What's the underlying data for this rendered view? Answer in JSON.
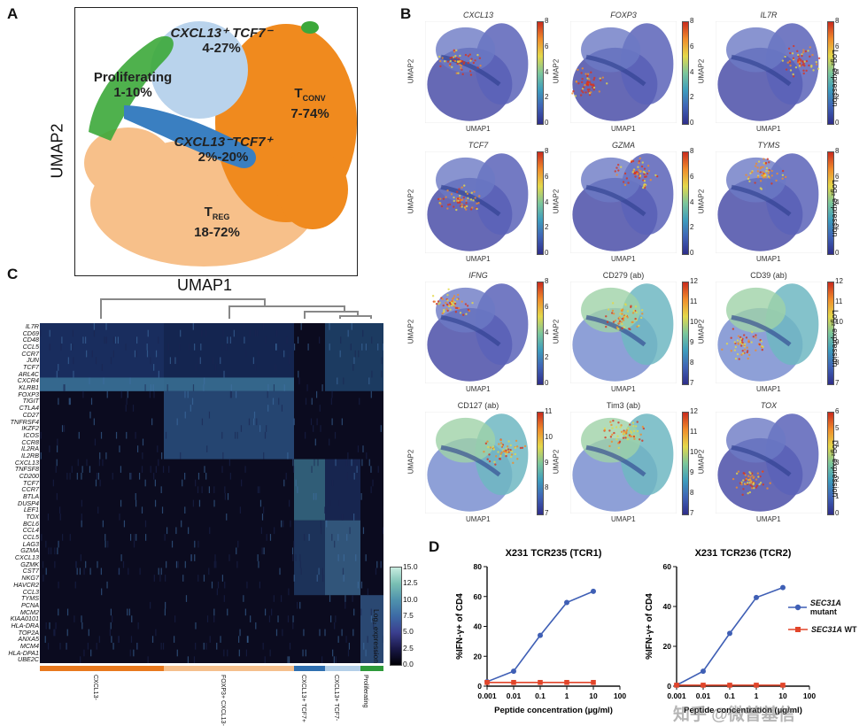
{
  "panels": {
    "a": "A",
    "b": "B",
    "c": "C",
    "d": "D"
  },
  "umap_main": {
    "xlabel": "UMAP1",
    "ylabel": "UMAP2",
    "clusters": [
      {
        "name": "CXCL13⁺ TCF7⁻",
        "pct": "4-27%",
        "color": "#b9d3ec"
      },
      {
        "name": "Proliferating",
        "pct": "1-10%",
        "color": "#3ca83a"
      },
      {
        "name": "T",
        "sub": "CONV",
        "pct": "7-74%",
        "color": "#f08a1e"
      },
      {
        "name": "CXCL13⁻TCF7⁺",
        "pct": "2%-20%",
        "color": "#3a7fc1"
      },
      {
        "name": "T",
        "sub": "REG",
        "pct": "18-72%",
        "color": "#f7c08a"
      }
    ]
  },
  "feature_plots": [
    {
      "title": "CXCL13",
      "italic": true,
      "cb_ticks": [
        "8",
        "6",
        "4",
        "2",
        "0"
      ],
      "cb_label": ""
    },
    {
      "title": "FOXP3",
      "italic": true,
      "cb_ticks": [
        "8",
        "6",
        "4",
        "2",
        "0"
      ],
      "cb_label": ""
    },
    {
      "title": "IL7R",
      "italic": true,
      "cb_ticks": [
        "8",
        "6",
        "4",
        "2",
        "0"
      ],
      "cb_label": "Log₂ expression"
    },
    {
      "title": "TCF7",
      "italic": true,
      "cb_ticks": [
        "8",
        "6",
        "4",
        "2",
        "0"
      ],
      "cb_label": ""
    },
    {
      "title": "GZMA",
      "italic": true,
      "cb_ticks": [
        "8",
        "6",
        "4",
        "2",
        "0"
      ],
      "cb_label": ""
    },
    {
      "title": "TYMS",
      "italic": true,
      "cb_ticks": [
        "8",
        "6",
        "4",
        "2",
        "0"
      ],
      "cb_label": "Log₂ expression"
    },
    {
      "title": "IFNG",
      "italic": true,
      "cb_ticks": [
        "8",
        "6",
        "4",
        "2",
        "0"
      ],
      "cb_label": ""
    },
    {
      "title": "CD279 (ab)",
      "italic": false,
      "cb_ticks": [
        "12",
        "11",
        "10",
        "9",
        "8",
        "7"
      ],
      "cb_label": ""
    },
    {
      "title": "CD39 (ab)",
      "italic": false,
      "cb_ticks": [
        "12",
        "11",
        "10",
        "9",
        "8",
        "7"
      ],
      "cb_label": "Log₂ expression"
    },
    {
      "title": "CD127 (ab)",
      "italic": false,
      "cb_ticks": [
        "11",
        "10",
        "9",
        "8",
        "7"
      ],
      "cb_label": ""
    },
    {
      "title": "Tim3 (ab)",
      "italic": false,
      "cb_ticks": [
        "12",
        "11",
        "10",
        "9",
        "8",
        "7"
      ],
      "cb_label": ""
    },
    {
      "title": "TOX",
      "italic": true,
      "cb_ticks": [
        "6",
        "5",
        "4",
        "3",
        "2",
        "1",
        "0"
      ],
      "cb_label": "Log₂ expression"
    }
  ],
  "feature_axes": {
    "x": "UMAP1",
    "y": "UMAP2"
  },
  "heatmap": {
    "genes": [
      "IL7R",
      "CD69",
      "CD48",
      "CCL5",
      "CCR7",
      "JUN",
      "TCF7",
      "ARL4C",
      "CXCR4",
      "KLRB1",
      "FOXP3",
      "TIGIT",
      "CTLA4",
      "CD27",
      "TNFRSF4",
      "IKZF2",
      "ICOS",
      "CCR8",
      "IL2RA",
      "IL2RB",
      "CXCL13",
      "TNFSF8",
      "CD200",
      "TCF7",
      "CCR7",
      "BTLA",
      "DUSP4",
      "LEF1",
      "TOX",
      "BCL6",
      "CCL4",
      "CCL5",
      "LAG3",
      "GZMA",
      "CXCL13",
      "GZMK",
      "CST7",
      "NKG7",
      "HAVCR2",
      "CCL3",
      "TYMS",
      "PCNA",
      "MCM2",
      "KIAA0101",
      "HLA-DRA",
      "TOP2A",
      "ANXA5",
      "MCM4",
      "HLA-DPA1",
      "UBE2C"
    ],
    "groups": [
      {
        "name": "CXCL13-",
        "color": "#e8791e"
      },
      {
        "name": "FOXP3+ CXCL13-",
        "color": "#f5bf8c"
      },
      {
        "name": "CXCL13+ TCF7+",
        "color": "#2f6fb0"
      },
      {
        "name": "CXCL13+ TCF7-",
        "color": "#b4cfe8"
      },
      {
        "name": "Proliferating",
        "color": "#2e9a3a"
      }
    ],
    "colorbar": {
      "label": "Log₂ expression",
      "ticks": [
        "15.0",
        "12.5",
        "10.0",
        "7.5",
        "5.0",
        "2.5",
        "0.0"
      ]
    }
  },
  "chart_data": [
    {
      "type": "line",
      "title": "X231 TCR235 (TCR1)",
      "xlabel": "Peptide concentration (µg/ml)",
      "ylabel": "%IFN-γ+ of CD4",
      "x": [
        0.001,
        0.01,
        0.1,
        1,
        10
      ],
      "xticks": [
        "0.001",
        "0.01",
        "0.1",
        "1",
        "10",
        "100"
      ],
      "ylim": [
        0,
        80
      ],
      "yticks": [
        "0",
        "20",
        "40",
        "60",
        "80"
      ],
      "log_x": true,
      "series": [
        {
          "name": "SEC31A mutant",
          "color": "#3f5fb5",
          "values": [
            3,
            10,
            34,
            56,
            63.5
          ]
        },
        {
          "name": "SEC31A WT",
          "color": "#e2452a",
          "values": [
            2.5,
            2.5,
            2.5,
            2.5,
            2.5
          ]
        }
      ]
    },
    {
      "type": "line",
      "title": "X231 TCR236 (TCR2)",
      "xlabel": "Peptide concentration (µg/ml)",
      "ylabel": "%IFN-γ+ of CD4",
      "x": [
        0.001,
        0.01,
        0.1,
        1,
        10
      ],
      "xticks": [
        "0.001",
        "0.01",
        "0.1",
        "1",
        "10",
        "100"
      ],
      "ylim": [
        0,
        60
      ],
      "yticks": [
        "0",
        "20",
        "40",
        "60"
      ],
      "log_x": true,
      "series": [
        {
          "name": "SEC31A mutant",
          "color": "#3f5fb5",
          "values": [
            0.5,
            7.5,
            26.5,
            44.5,
            49.5
          ]
        },
        {
          "name": "SEC31A WT",
          "color": "#e2452a",
          "values": [
            0.5,
            0.5,
            0.5,
            0.5,
            0.5
          ]
        }
      ]
    }
  ],
  "legend": [
    {
      "label": "SEC31A",
      "suffix": " mutant",
      "color": "#3f5fb5",
      "marker": "circle"
    },
    {
      "label": "SEC31A",
      "suffix": " WT",
      "color": "#e2452a",
      "marker": "square"
    }
  ],
  "watermark": "知乎 @微普基信"
}
